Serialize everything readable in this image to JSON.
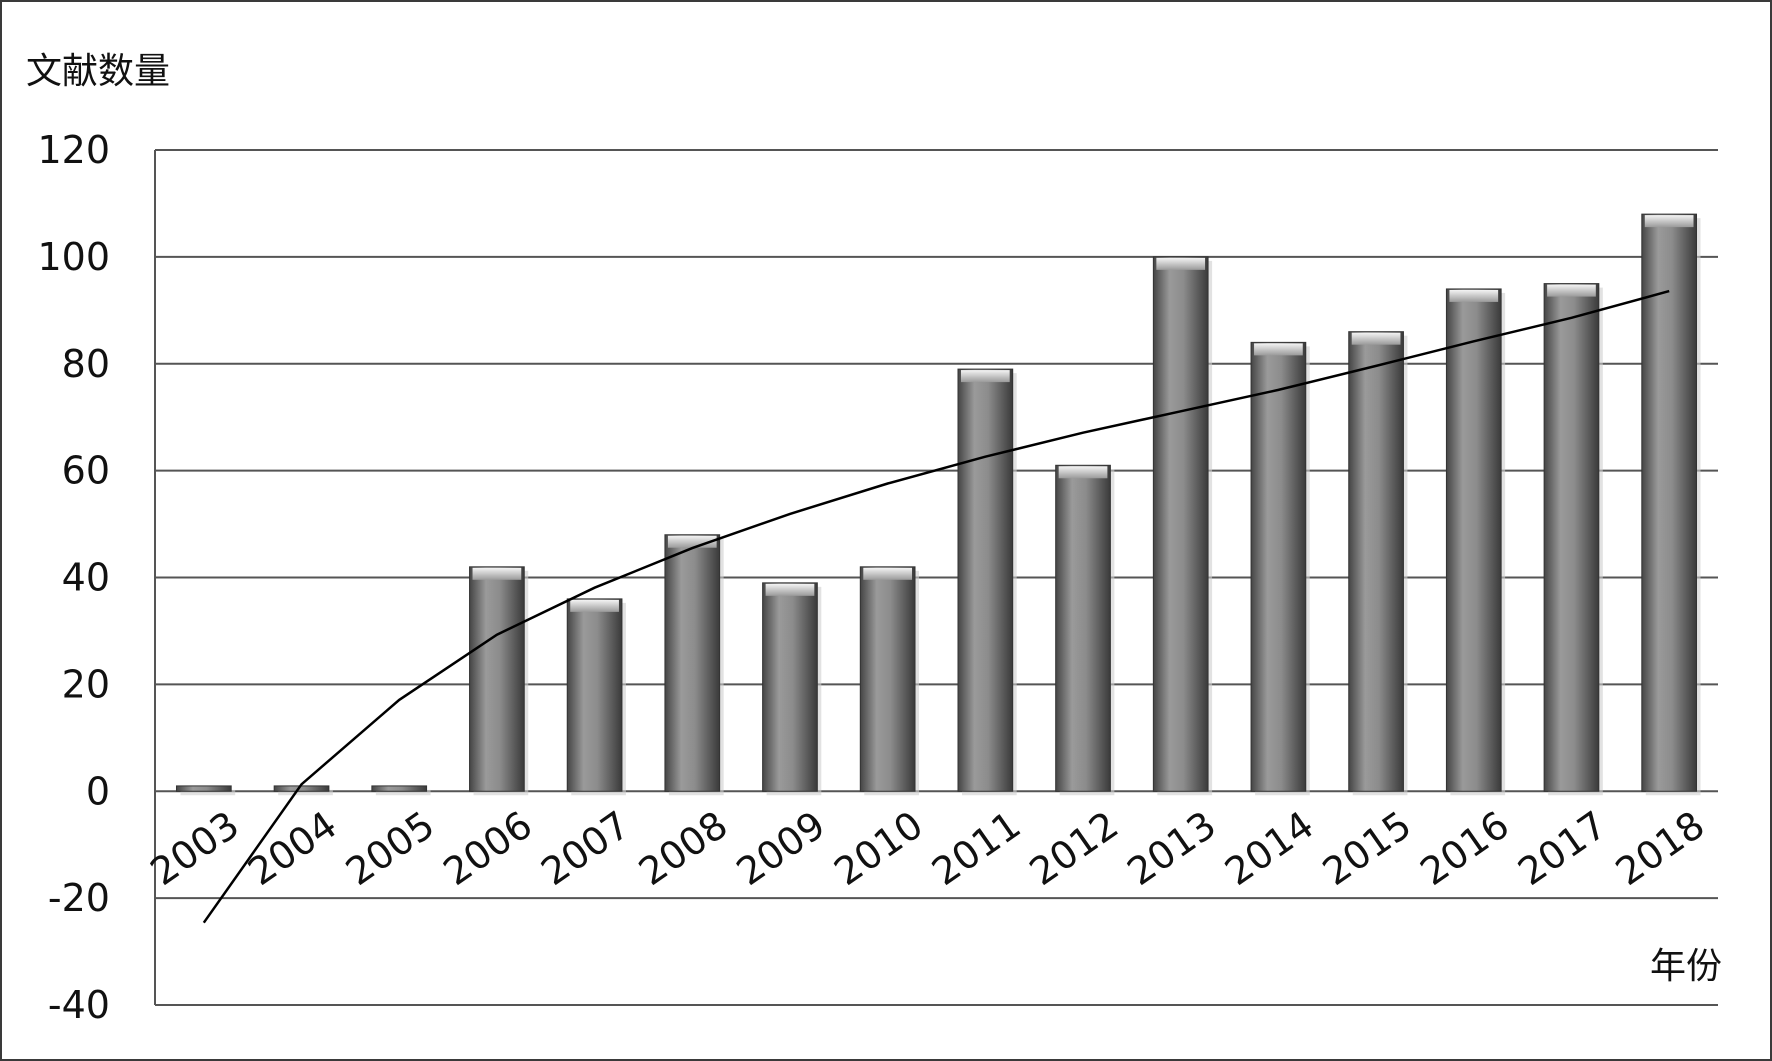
{
  "chart_data": {
    "type": "bar",
    "ylabel": "文献数量",
    "xlabel": "年份",
    "categories": [
      "2003",
      "2004",
      "2005",
      "2006",
      "2007",
      "2008",
      "2009",
      "2010",
      "2011",
      "2012",
      "2013",
      "2014",
      "2015",
      "2016",
      "2017",
      "2018"
    ],
    "series": [
      {
        "values": [
          1,
          1,
          1,
          42,
          36,
          48,
          39,
          42,
          79,
          61,
          100,
          84,
          86,
          94,
          95,
          108
        ]
      }
    ],
    "trendline": {
      "type": "logarithmic",
      "values": [
        -24.6,
        1.3,
        17.1,
        29.3,
        38.1,
        45.5,
        51.9,
        57.6,
        62.6,
        67.1,
        71.1,
        75.1,
        79.6,
        84.2,
        88.6,
        93.6
      ]
    },
    "yticks": [
      "-40",
      "-20",
      "0",
      "20",
      "40",
      "60",
      "80",
      "100",
      "120"
    ],
    "ylim": [
      -40,
      120
    ],
    "grid": true,
    "legend": "none",
    "colors": {
      "bar": "#7a7a7a",
      "grid": "#555555",
      "trend": "#000000"
    }
  }
}
